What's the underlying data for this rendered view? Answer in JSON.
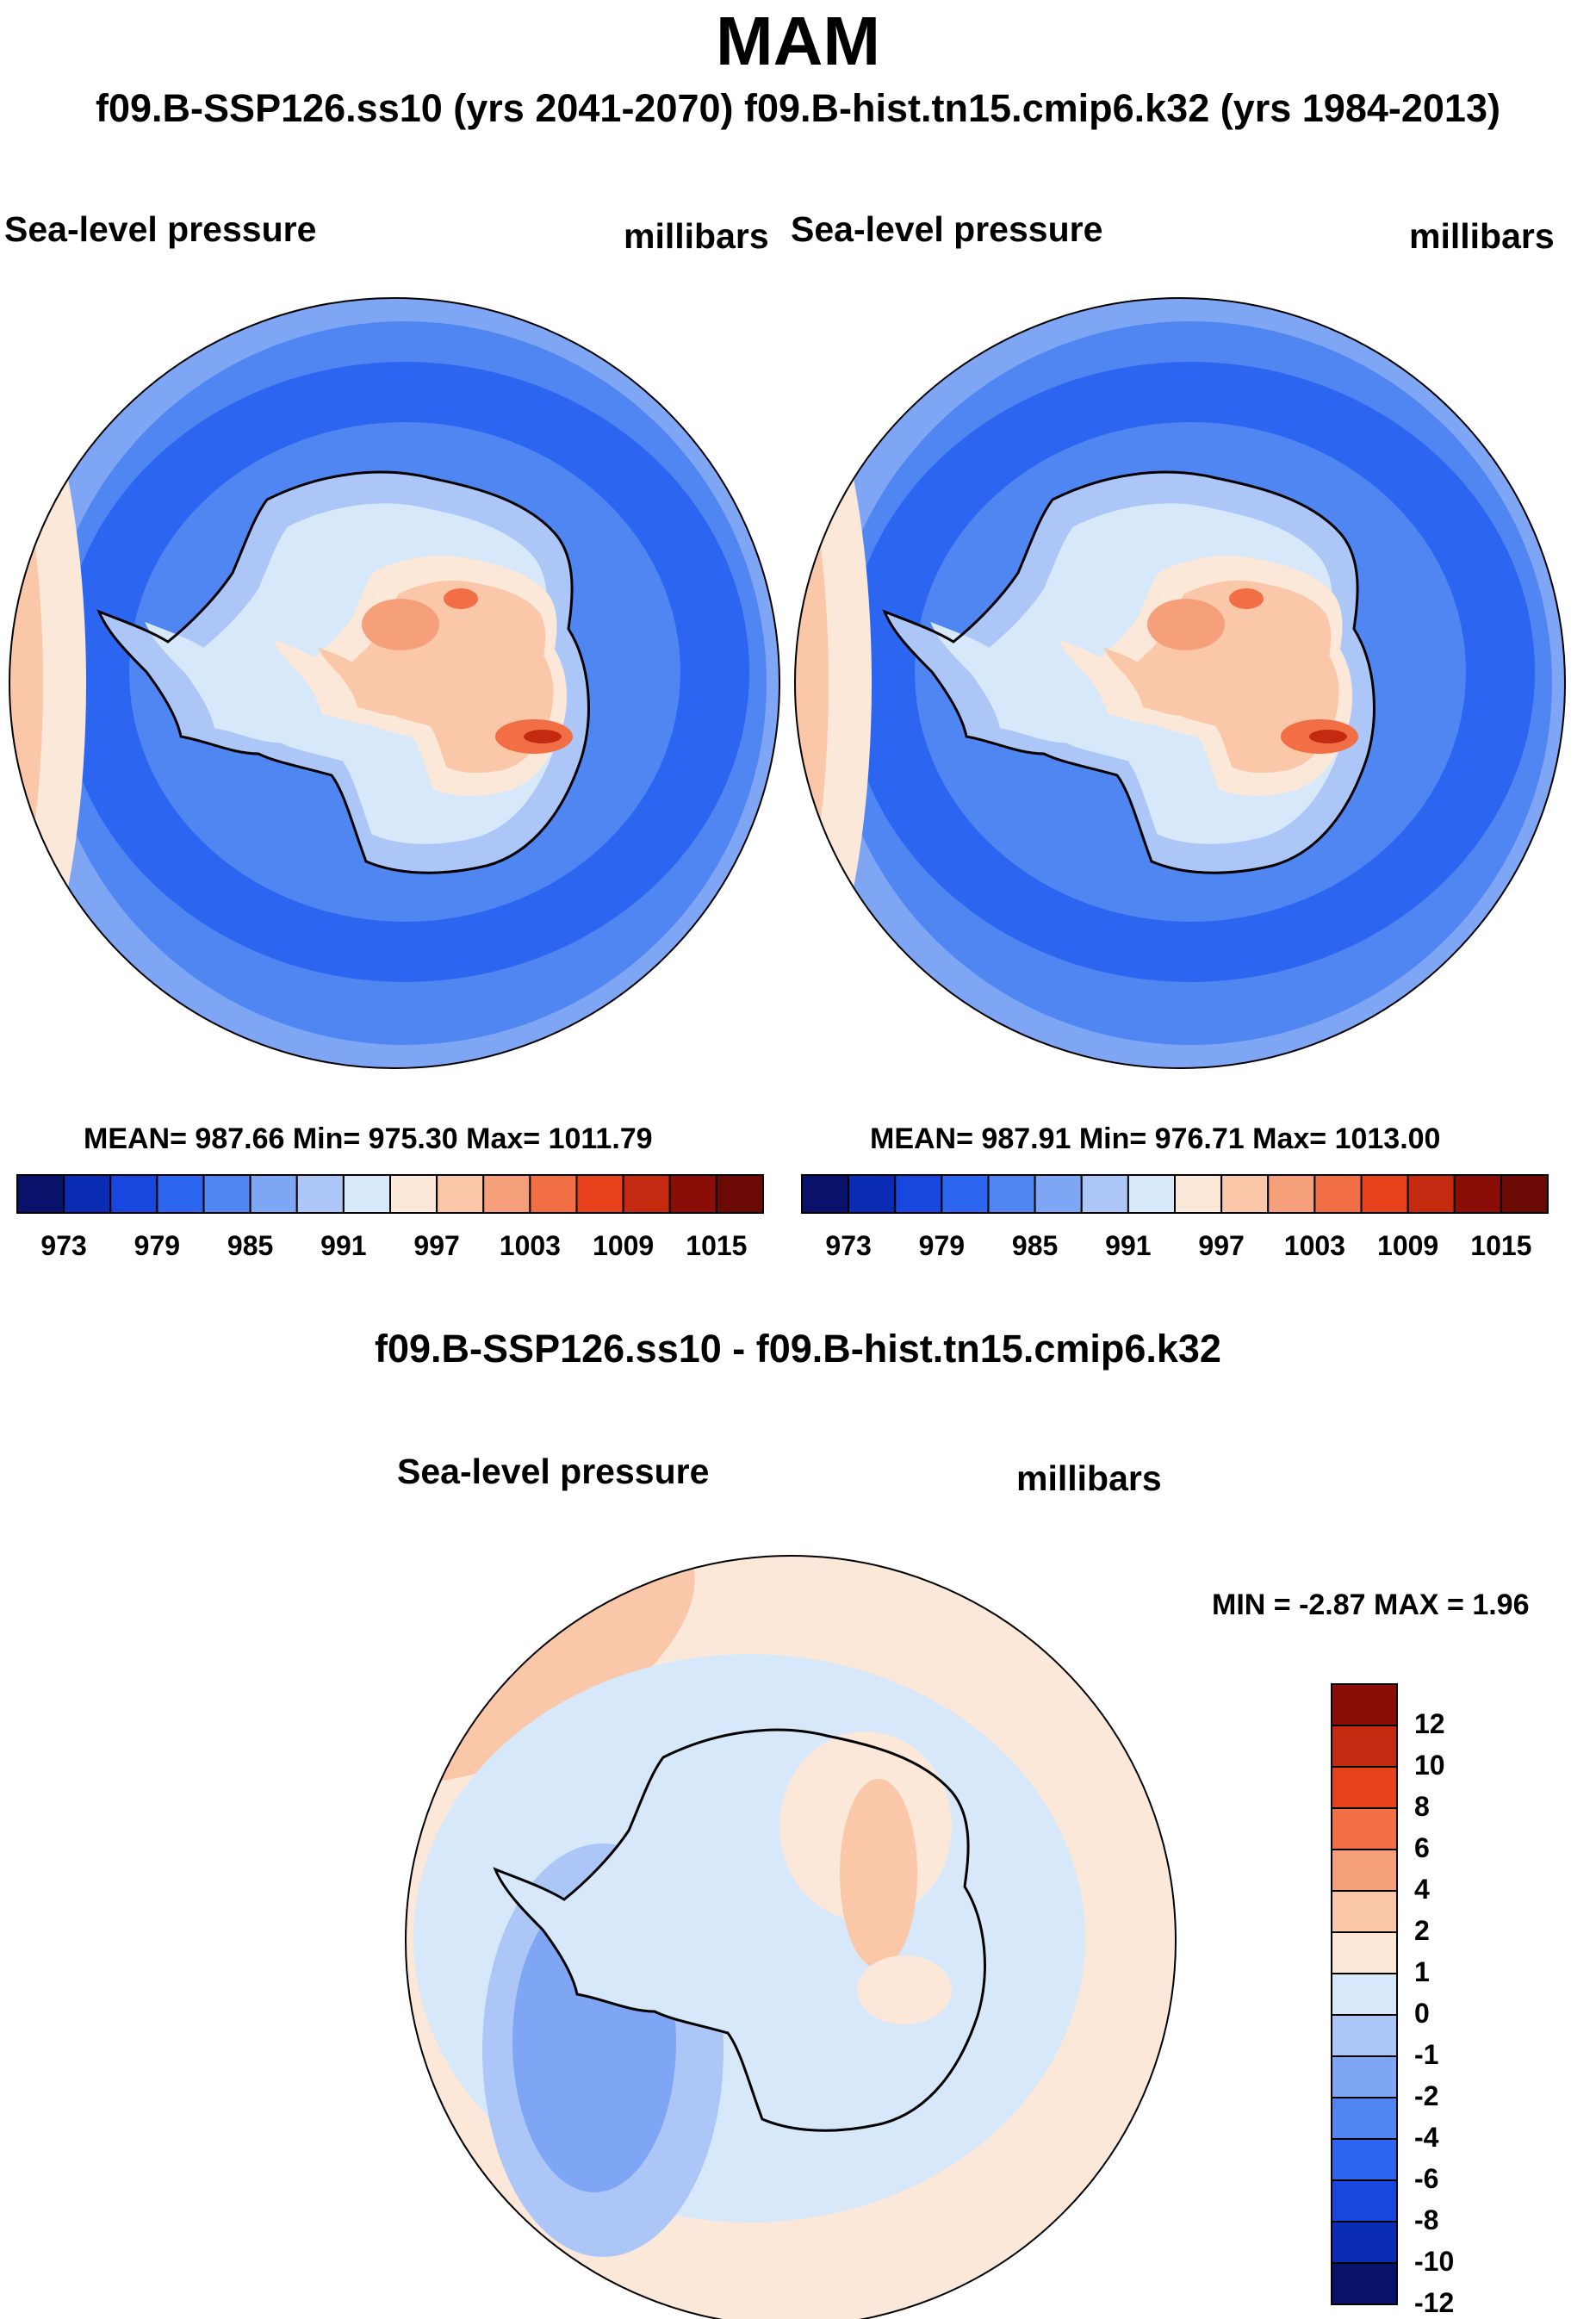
{
  "header": {
    "title": "MAM",
    "subtitle": "f09.B-SSP126.ss10 (yrs 2041-2070)  f09.B-hist.tn15.cmip6.k32 (yrs 1984-2013)"
  },
  "panels": [
    {
      "variable": "Sea-level pressure",
      "units": "millibars",
      "stats": "MEAN= 987.66  Min= 975.30  Max= 1011.79"
    },
    {
      "variable": "Sea-level pressure",
      "units": "millibars",
      "stats": "MEAN= 987.91  Min= 976.71  Max= 1013.00"
    }
  ],
  "difference": {
    "title": "f09.B-SSP126.ss10 - f09.B-hist.tn15.cmip6.k32",
    "variable": "Sea-level pressure",
    "units": "millibars",
    "stats": "MIN =  -2.87 MAX =   1.96"
  },
  "chart_data": [
    {
      "type": "heatmap",
      "title": "Sea-level pressure",
      "units": "millibars",
      "projection": "south polar stereographic",
      "summary": {
        "mean": 987.66,
        "min": 975.3,
        "max": 1011.79
      },
      "colorbar": {
        "orientation": "horizontal",
        "levels": [
          973,
          976,
          979,
          982,
          985,
          988,
          991,
          994,
          997,
          1000,
          1003,
          1006,
          1009,
          1012,
          1015
        ],
        "tick_labels": [
          "973",
          "979",
          "985",
          "991",
          "997",
          "1003",
          "1009",
          "1015"
        ],
        "colors": [
          "#08126b",
          "#0a2bb3",
          "#1847e0",
          "#2c66f0",
          "#4f86f2",
          "#7ea6f4",
          "#acc6f8",
          "#d8e8fb",
          "#fce8d8",
          "#fac7a8",
          "#f5a07a",
          "#f26e44",
          "#e8421c",
          "#c42a10",
          "#8a0d08",
          "#6b0a05"
        ]
      }
    },
    {
      "type": "heatmap",
      "title": "Sea-level pressure",
      "units": "millibars",
      "projection": "south polar stereographic",
      "summary": {
        "mean": 987.91,
        "min": 976.71,
        "max": 1013.0
      },
      "colorbar": {
        "orientation": "horizontal",
        "levels": [
          973,
          976,
          979,
          982,
          985,
          988,
          991,
          994,
          997,
          1000,
          1003,
          1006,
          1009,
          1012,
          1015
        ],
        "tick_labels": [
          "973",
          "979",
          "985",
          "991",
          "997",
          "1003",
          "1009",
          "1015"
        ],
        "colors": [
          "#08126b",
          "#0a2bb3",
          "#1847e0",
          "#2c66f0",
          "#4f86f2",
          "#7ea6f4",
          "#acc6f8",
          "#d8e8fb",
          "#fce8d8",
          "#fac7a8",
          "#f5a07a",
          "#f26e44",
          "#e8421c",
          "#c42a10",
          "#8a0d08",
          "#6b0a05"
        ]
      }
    },
    {
      "type": "heatmap",
      "title": "f09.B-SSP126.ss10 - f09.B-hist.tn15.cmip6.k32",
      "units": "millibars",
      "projection": "south polar stereographic",
      "summary": {
        "min": -2.87,
        "max": 1.96
      },
      "colorbar": {
        "orientation": "vertical",
        "levels": [
          -12,
          -10,
          -8,
          -6,
          -4,
          -2,
          -1,
          0,
          1,
          2,
          4,
          6,
          8,
          10,
          12
        ],
        "tick_labels": [
          "12",
          "10",
          "8",
          "6",
          "4",
          "2",
          "1",
          "0",
          "-1",
          "-2",
          "-4",
          "-6",
          "-8",
          "-10",
          "-12"
        ],
        "colors_top_to_bottom": [
          "#8a0d08",
          "#c42a10",
          "#e8421c",
          "#f26e44",
          "#f5a07a",
          "#fac7a8",
          "#fce8d8",
          "#d8e8fb",
          "#acc6f8",
          "#7ea6f4",
          "#4f86f2",
          "#2c66f0",
          "#1847e0",
          "#0a2bb3",
          "#08126b"
        ]
      }
    }
  ]
}
